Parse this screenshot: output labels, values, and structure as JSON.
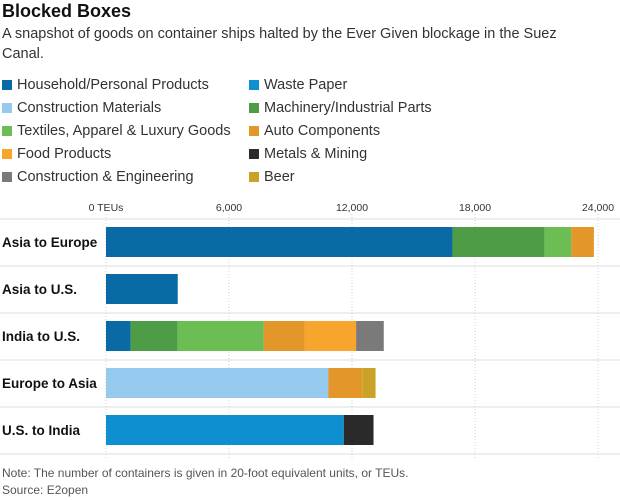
{
  "header": {
    "title": "Blocked Boxes",
    "subtitle": "A snapshot of goods on container ships halted by the Ever Given blockage in the Suez Canal."
  },
  "footer": {
    "note": "Note: The number of containers is given in 20-foot equivalent units, or TEUs.",
    "source": "Source: E2open"
  },
  "chart_data": {
    "type": "bar",
    "orientation": "horizontal",
    "stacked": true,
    "categories": [
      "Asia to Europe",
      "Asia to U.S.",
      "India to U.S.",
      "Europe to Asia",
      "U.S. to India"
    ],
    "x_ticks": [
      {
        "value": 0,
        "label": "0 TEUs"
      },
      {
        "value": 6000,
        "label": "6,000"
      },
      {
        "value": 12000,
        "label": "12,000"
      },
      {
        "value": 18000,
        "label": "18,000"
      },
      {
        "value": 24000,
        "label": "24,000"
      }
    ],
    "xlim": [
      0,
      24000
    ],
    "grid": true,
    "legend_position": "top",
    "series": [
      {
        "name": "Household/Personal Products",
        "color": "#0a6aa6",
        "values": [
          16900,
          3500,
          1200,
          0,
          0
        ]
      },
      {
        "name": "Waste Paper",
        "color": "#0e90d0",
        "values": [
          0,
          0,
          0,
          0,
          11600
        ]
      },
      {
        "name": "Construction Materials",
        "color": "#95c9ee",
        "values": [
          0,
          0,
          0,
          10850,
          0
        ]
      },
      {
        "name": "Machinery/Industrial Parts",
        "color": "#4e9c46",
        "values": [
          4500,
          0,
          2300,
          0,
          0
        ]
      },
      {
        "name": "Textiles, Apparel & Luxury Goods",
        "color": "#6dbd55",
        "values": [
          1300,
          0,
          4200,
          0,
          0
        ]
      },
      {
        "name": "Auto Components",
        "color": "#e3962a",
        "values": [
          1100,
          0,
          2000,
          1650,
          0
        ]
      },
      {
        "name": "Food Products",
        "color": "#f7a52c",
        "values": [
          0,
          0,
          2500,
          0,
          0
        ]
      },
      {
        "name": "Metals & Mining",
        "color": "#2a2a2a",
        "values": [
          0,
          0,
          0,
          0,
          1450
        ]
      },
      {
        "name": "Construction & Engineering",
        "color": "#7a7a7a",
        "values": [
          0,
          0,
          1350,
          0,
          0
        ]
      },
      {
        "name": "Beer",
        "color": "#c9a227",
        "values": [
          0,
          0,
          0,
          650,
          0
        ]
      }
    ]
  }
}
